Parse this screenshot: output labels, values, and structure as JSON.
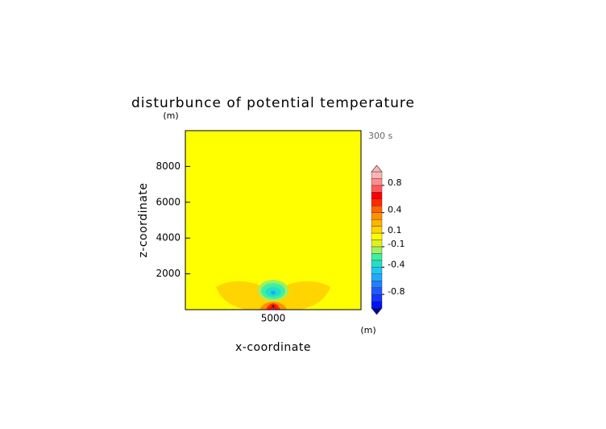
{
  "chart_data": {
    "type": "contour",
    "title": "disturbunce of potential temperature",
    "time_label": "300 s",
    "x_label": "x-coordinate",
    "y_label": "z-coordinate",
    "x_unit": "(m)",
    "y_unit": "(m)",
    "xlim": [
      0,
      10000
    ],
    "ylim": [
      0,
      10000
    ],
    "xticks": [
      5000
    ],
    "yticks": [
      2000,
      4000,
      6000,
      8000
    ],
    "levels": [
      -1,
      -0.9,
      -0.8,
      -0.7,
      -0.6,
      -0.5,
      -0.4,
      -0.3,
      -0.2,
      -0.1,
      0,
      0.1,
      0.2,
      0.3,
      0.4,
      0.5,
      0.6,
      0.7,
      0.8,
      0.9,
      1
    ],
    "colors": [
      "#0010ff",
      "#1038ff",
      "#2058ff",
      "#2080ff",
      "#20a8ff",
      "#20c8f0",
      "#20e0c8",
      "#40f0a0",
      "#a0f060",
      "#e0f020",
      "#ffff00",
      "#ffd400",
      "#ffb400",
      "#ff9000",
      "#ff6400",
      "#ff2800",
      "#ff0000",
      "#ff5a5a",
      "#ff8c8c",
      "#ffb4b4"
    ],
    "colorbar_ticks": [
      0.8,
      0.4,
      0.1,
      -0.1,
      -0.4,
      -0.8
    ]
  }
}
